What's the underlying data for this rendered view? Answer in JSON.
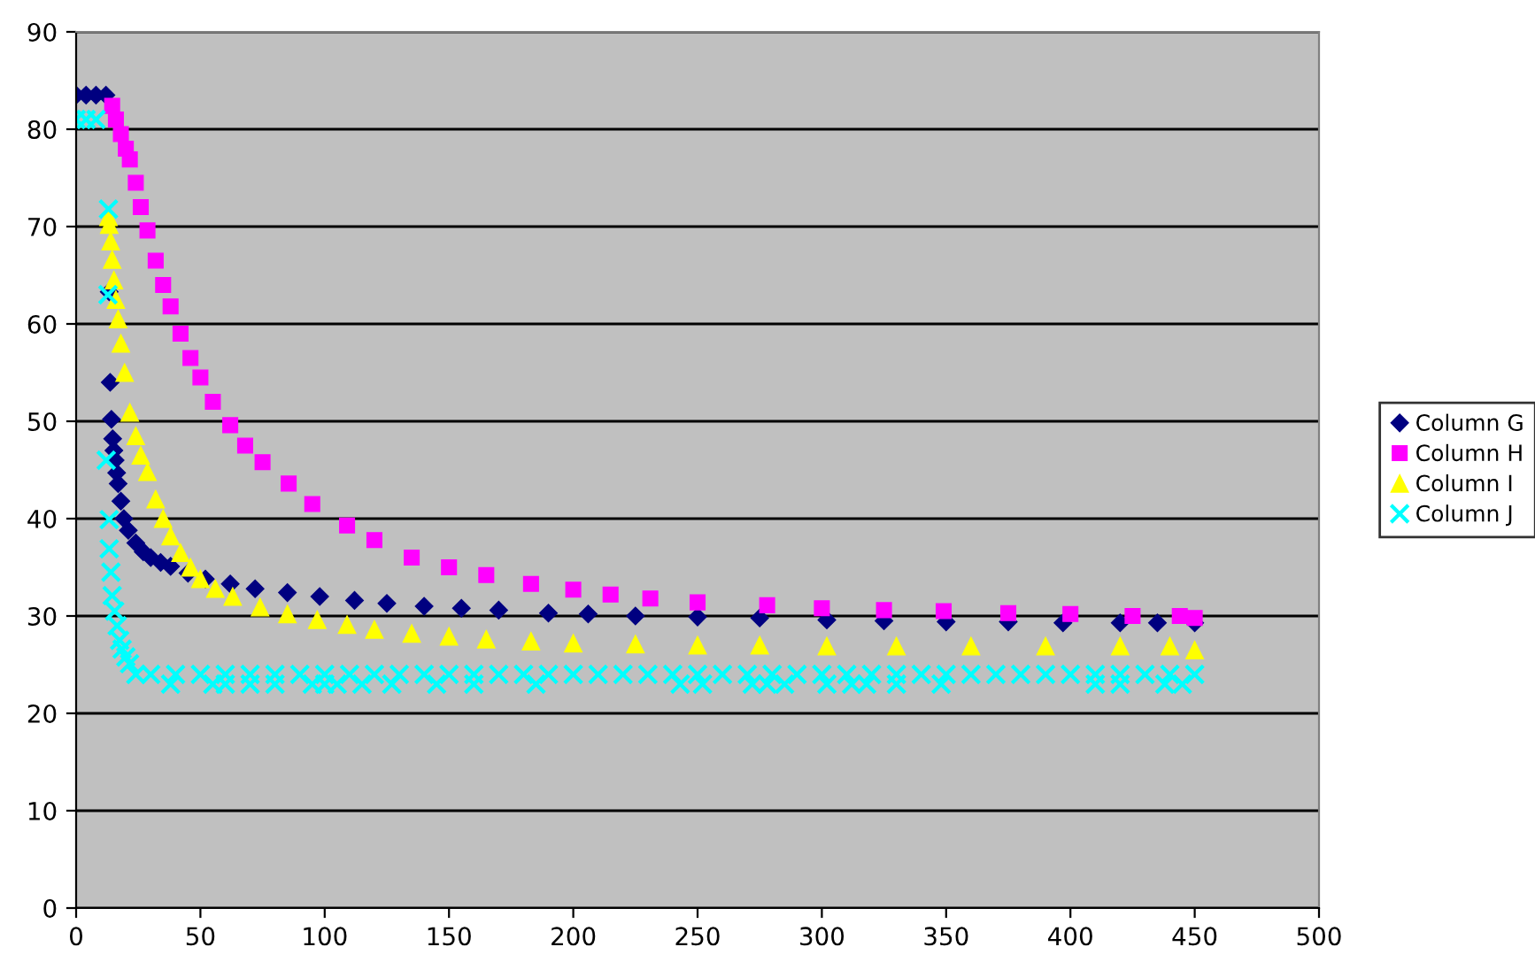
{
  "chart_data": {
    "type": "scatter",
    "xlim": [
      0,
      500
    ],
    "xticks": [
      0,
      50,
      100,
      150,
      200,
      250,
      300,
      350,
      400,
      450,
      500
    ],
    "ylim": [
      0,
      90
    ],
    "yticks": [
      0,
      10,
      20,
      30,
      40,
      50,
      60,
      70,
      80,
      90
    ],
    "grid": "y",
    "legend": "right",
    "series": [
      {
        "name": "Column G",
        "color": "#000080",
        "marker": "diamond",
        "x": [
          0,
          4,
          8,
          12,
          13.3,
          13.7,
          14.2,
          14.7,
          15.2,
          15.7,
          16.3,
          16.9,
          18,
          19.2,
          21,
          24,
          27,
          30,
          34,
          38,
          45,
          52,
          62,
          72,
          85,
          98,
          112,
          125,
          140,
          155,
          170,
          190,
          206,
          225,
          250,
          275,
          302,
          325,
          350,
          375,
          397,
          420,
          435,
          450
        ],
        "values": [
          83.5,
          83.5,
          83.5,
          83.5,
          63.3,
          54,
          50.2,
          48.2,
          47,
          46,
          44.7,
          43.6,
          41.8,
          40,
          38.8,
          37.5,
          36.6,
          36,
          35.5,
          35.1,
          34.4,
          33.8,
          33.3,
          32.8,
          32.4,
          32,
          31.6,
          31.3,
          31,
          30.8,
          30.6,
          30.3,
          30.2,
          30,
          29.9,
          29.8,
          29.6,
          29.5,
          29.4,
          29.4,
          29.3,
          29.3,
          29.3,
          29.3
        ]
      },
      {
        "name": "Column H",
        "color": "#ff00ff",
        "marker": "square",
        "x": [
          14.5,
          16,
          18,
          20,
          21.6,
          24,
          26,
          28.7,
          32,
          35,
          38,
          42,
          46,
          50,
          55,
          62,
          68,
          75,
          85.5,
          95,
          109,
          120,
          135,
          150,
          165,
          183,
          200,
          215,
          231,
          250,
          278,
          300,
          325,
          349,
          375,
          400,
          425,
          444,
          450
        ],
        "values": [
          82.4,
          81,
          79.5,
          78,
          76.9,
          74.5,
          72,
          69.6,
          66.5,
          64,
          61.8,
          59,
          56.5,
          54.5,
          52,
          49.6,
          47.5,
          45.8,
          43.6,
          41.5,
          39.3,
          37.8,
          36,
          35,
          34.2,
          33.3,
          32.7,
          32.2,
          31.8,
          31.4,
          31.1,
          30.8,
          30.6,
          30.5,
          30.3,
          30.2,
          30,
          30,
          29.8
        ]
      },
      {
        "name": "Column I",
        "color": "#ffff00",
        "marker": "triangle",
        "x": [
          13,
          13.3,
          13.9,
          14.5,
          15.2,
          16,
          16.9,
          18,
          19.5,
          21.6,
          24,
          26,
          28.7,
          32,
          35,
          38,
          42,
          46,
          50,
          56,
          63,
          74,
          85,
          97,
          109,
          120,
          135,
          150,
          165,
          183,
          200,
          225,
          250,
          275,
          302,
          330,
          360,
          390,
          420,
          440,
          450
        ],
        "values": [
          71,
          70.2,
          68.5,
          66.6,
          64.5,
          62.5,
          60.5,
          58,
          55,
          50.9,
          48.5,
          46.5,
          44.8,
          42,
          40,
          38.2,
          36.5,
          35,
          33.8,
          32.8,
          32,
          30.9,
          30.2,
          29.6,
          29.1,
          28.6,
          28.2,
          27.9,
          27.6,
          27.4,
          27.2,
          27.1,
          27,
          27,
          26.9,
          26.9,
          26.9,
          26.9,
          26.9,
          26.9,
          26.5
        ]
      },
      {
        "name": "Column J",
        "color": "#00ffff",
        "marker": "cross",
        "x": [
          0,
          4,
          8,
          13,
          12.8,
          12.1,
          13.3,
          13.3,
          14,
          14.5,
          15.5,
          16.5,
          17.5,
          18.5,
          20,
          21.5,
          24,
          30,
          40,
          50,
          60,
          70,
          80,
          90,
          100,
          110,
          120,
          130,
          140,
          150,
          160,
          170,
          180,
          190,
          200,
          210,
          220,
          230,
          240,
          250,
          260,
          270,
          280,
          290,
          300,
          310,
          320,
          330,
          340,
          350,
          360,
          370,
          380,
          390,
          400,
          410,
          420,
          430,
          440,
          450,
          38,
          55,
          60,
          70,
          80,
          95,
          100,
          105,
          115,
          127,
          145,
          160,
          185,
          243,
          252,
          272,
          278,
          285,
          302,
          312,
          318,
          330,
          348,
          410,
          420,
          438,
          445
        ],
        "values": [
          81,
          81,
          81,
          71.8,
          63,
          46,
          39.9,
          36.9,
          34.5,
          32.1,
          30.5,
          29,
          27.5,
          26.6,
          25.8,
          25.1,
          24,
          24,
          24,
          24,
          24,
          24,
          24,
          24,
          24,
          24,
          24,
          24,
          24,
          24,
          24,
          24,
          24,
          24,
          24,
          24,
          24,
          24,
          24,
          24,
          24,
          24,
          24,
          24,
          24,
          24,
          24,
          24,
          24,
          24,
          24,
          24,
          24,
          24,
          24,
          24,
          24,
          24,
          24,
          24,
          23,
          23,
          23,
          23,
          23,
          23,
          23,
          23,
          23,
          23,
          23,
          23,
          23,
          23,
          23,
          23,
          23,
          23,
          23,
          23,
          23,
          23,
          23,
          23,
          23,
          23,
          23
        ]
      }
    ]
  }
}
